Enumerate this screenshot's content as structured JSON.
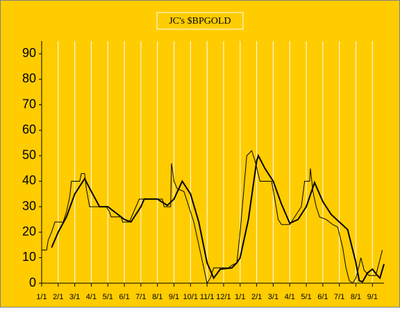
{
  "chart_data": {
    "type": "line",
    "title": "JC's $BPGOLD",
    "background": "#ffcc00",
    "grid": true,
    "xlim": [
      0,
      20.7
    ],
    "ylim": [
      0,
      95
    ],
    "xticks": [
      {
        "value": 0,
        "label": "1/1"
      },
      {
        "value": 1,
        "label": "2/1"
      },
      {
        "value": 2,
        "label": "3/1"
      },
      {
        "value": 3,
        "label": "4/1"
      },
      {
        "value": 4,
        "label": "5/1"
      },
      {
        "value": 5,
        "label": "6/1"
      },
      {
        "value": 6,
        "label": "7/1"
      },
      {
        "value": 7,
        "label": "8/1"
      },
      {
        "value": 8,
        "label": "9/1"
      },
      {
        "value": 9,
        "label": "10/1"
      },
      {
        "value": 10,
        "label": "11/1"
      },
      {
        "value": 11,
        "label": "12/1"
      },
      {
        "value": 12,
        "label": "1/1"
      },
      {
        "value": 13,
        "label": "2/1"
      },
      {
        "value": 14,
        "label": "3/1"
      },
      {
        "value": 15,
        "label": "4/1"
      },
      {
        "value": 16,
        "label": "5/1"
      },
      {
        "value": 17,
        "label": "6/1"
      },
      {
        "value": 18,
        "label": "7/1"
      },
      {
        "value": 19,
        "label": "8/1"
      },
      {
        "value": 20,
        "label": "9/1"
      }
    ],
    "yticks": [
      0,
      10,
      20,
      30,
      40,
      50,
      60,
      70,
      80,
      90
    ],
    "series": [
      {
        "color": "#000000",
        "width": 1,
        "x": [
          0,
          0.3,
          0.4,
          0.6,
          0.8,
          1.3,
          1.5,
          1.7,
          1.8,
          2.3,
          2.4,
          2.6,
          2.7,
          2.9,
          3.9,
          4.1,
          4.2,
          4.8,
          4.9,
          5.3,
          5.7,
          5.9,
          7.3,
          7.4,
          7.8,
          7.85,
          8.0,
          8.2,
          8.6,
          8.9,
          9.2,
          9.5,
          9.8,
          10.0,
          10.2,
          10.4,
          11.3,
          11.5,
          11.8,
          12.0,
          12.2,
          12.4,
          12.7,
          12.9,
          13.2,
          13.9,
          14.1,
          14.3,
          14.5,
          15.0,
          15.3,
          15.7,
          15.9,
          16.2,
          16.25,
          16.4,
          16.6,
          16.8,
          17.2,
          17.6,
          17.9,
          18.2,
          18.4,
          18.6,
          18.8,
          19.0,
          19.2,
          19.3,
          19.5,
          19.8,
          20.2,
          20.4,
          20.6
        ],
        "values": [
          13,
          13,
          17,
          20,
          24,
          24,
          28,
          34,
          40,
          40,
          43,
          43,
          37,
          30,
          30,
          28,
          26,
          26,
          24,
          24,
          30,
          33,
          33,
          30,
          30,
          47,
          40,
          37,
          36,
          30,
          24,
          15,
          6,
          0,
          2,
          6,
          6,
          7,
          8,
          20,
          35,
          50,
          52,
          48,
          40,
          40,
          33,
          25,
          23,
          23,
          26,
          30,
          40,
          40,
          45,
          36,
          30,
          26,
          25,
          23,
          22,
          14,
          6,
          1,
          0,
          2,
          7,
          10,
          5,
          3,
          3,
          8,
          13
        ]
      },
      {
        "color": "#000000",
        "width": 2,
        "x": [
          0.6,
          1.0,
          1.5,
          2.0,
          2.6,
          3.0,
          3.5,
          4.0,
          5.0,
          5.4,
          6.0,
          6.2,
          7.0,
          7.6,
          8.0,
          8.5,
          9.0,
          9.5,
          10.0,
          10.4,
          10.8,
          11.5,
          11.8,
          12.0,
          12.5,
          13.0,
          13.1,
          13.5,
          14.0,
          14.5,
          15.0,
          15.5,
          16.0,
          16.5,
          17.0,
          17.5,
          18.0,
          18.5,
          19.0,
          19.2,
          19.4,
          19.7,
          20.0,
          20.3,
          20.45,
          20.7
        ],
        "values": [
          14,
          20,
          26,
          35,
          41,
          36,
          30,
          30,
          25,
          24,
          30,
          33,
          33,
          30.5,
          33,
          40,
          35,
          24,
          8,
          2,
          5.5,
          6,
          8,
          10,
          25,
          48,
          50,
          45,
          40,
          31,
          23.5,
          25,
          30,
          39.5,
          32,
          27,
          24,
          21,
          8,
          1,
          0.5,
          4,
          5.5,
          3,
          2,
          7.5
        ]
      }
    ]
  }
}
